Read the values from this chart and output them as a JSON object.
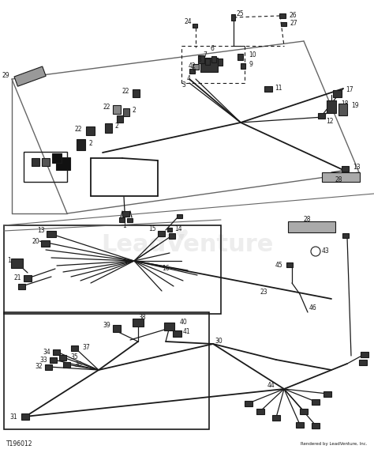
{
  "white": "#ffffff",
  "black": "#1a1a1a",
  "dark_gray": "#333333",
  "mid_gray": "#666666",
  "light_gray": "#aaaaaa",
  "panel_gray": "#bbbbbb",
  "watermark_color": "#cccccc",
  "title_bottom_left": "T196012",
  "title_bottom_right": "Rendered by LeadVenture, Inc.",
  "figsize": [
    4.74,
    5.73
  ],
  "dpi": 100
}
